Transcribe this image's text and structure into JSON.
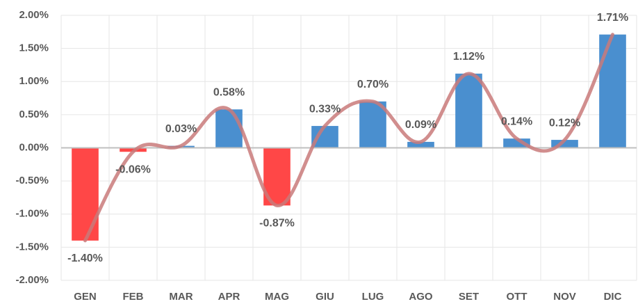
{
  "chart_data": {
    "type": "bar",
    "categories": [
      "GEN",
      "FEB",
      "MAR",
      "APR",
      "MAG",
      "GIU",
      "LUG",
      "AGO",
      "SET",
      "OTT",
      "NOV",
      "DIC"
    ],
    "values": [
      -1.4,
      -0.06,
      0.03,
      0.58,
      -0.87,
      0.33,
      0.7,
      0.09,
      1.12,
      0.14,
      0.12,
      1.71
    ],
    "value_labels": [
      "-1.40%",
      "-0.06%",
      "0.03%",
      "0.58%",
      "-0.87%",
      "0.33%",
      "0.70%",
      "0.09%",
      "1.12%",
      "0.14%",
      "0.12%",
      "1.71%"
    ],
    "color": "#4a8fcf",
    "negative_color": "#ff4747",
    "line_overlay": true,
    "line_color": "#c97a7a",
    "ylim": [
      -2,
      2
    ],
    "yticks": [
      {
        "value": -2,
        "label": "-2.00%"
      },
      {
        "value": -1.5,
        "label": "-1.50%"
      },
      {
        "value": -1,
        "label": "-1.00%"
      },
      {
        "value": -0.5,
        "label": "-0.50%"
      },
      {
        "value": 0,
        "label": "0.00%"
      },
      {
        "value": 0.5,
        "label": "0.50%"
      },
      {
        "value": 1,
        "label": "1.00%"
      },
      {
        "value": 1.5,
        "label": "1.50%"
      },
      {
        "value": 2,
        "label": "2.00%"
      }
    ],
    "grid": true
  }
}
